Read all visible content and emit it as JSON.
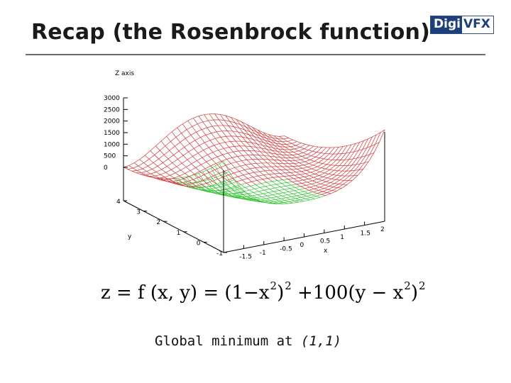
{
  "slide": {
    "title": "Recap (the Rosenbrock function)",
    "logo_left": "Digi",
    "logo_right": "VFX",
    "caption_text": "Global minimum at ",
    "caption_coords": "(1,1)"
  },
  "formula": {
    "lhs": "z = f (x, y) = (1−x",
    "exp1": "2",
    "mid1": ")",
    "exp2": "2",
    "mid2": " +100(y − x",
    "exp3": "2",
    "mid3": ")",
    "exp4": "2"
  },
  "chart_data": {
    "type": "surface3d",
    "function": "(1-x^2)^2 + 100(y-x^2)^2",
    "zlabel": "Z axis",
    "xlabel": "x",
    "ylabel": "y",
    "z_ticks": [
      "3000",
      "2500",
      "2000",
      "1500",
      "1000",
      "500",
      "0"
    ],
    "x_ticks": [
      "-1.5",
      "-1",
      "-0.5",
      "0",
      "0.5",
      "1",
      "1.5",
      "2"
    ],
    "y_ticks": [
      "4",
      "3",
      "2",
      "1",
      "0",
      "-1"
    ],
    "xlim": [
      -2,
      2
    ],
    "ylim": [
      -1,
      4
    ],
    "zlim": [
      0,
      3000
    ],
    "grid": false,
    "colors": {
      "surface_top": "#d13b3b",
      "surface_under": "#33c433",
      "axes": "#000000"
    }
  }
}
